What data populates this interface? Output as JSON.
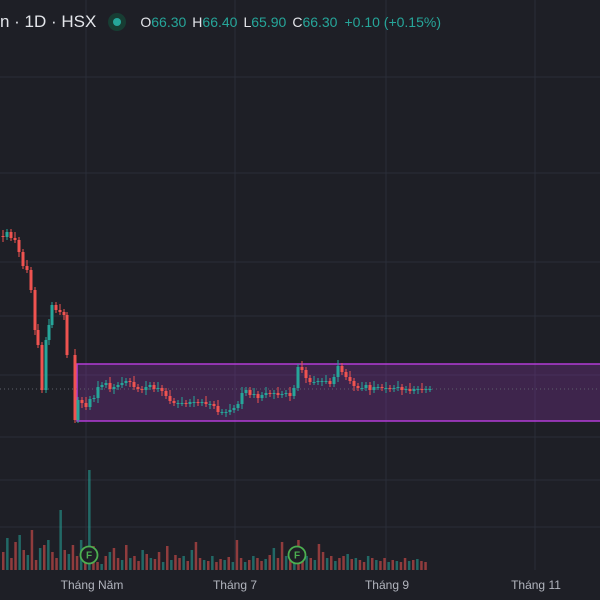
{
  "symbol_line": "n · 1D · HSX",
  "market_status_icon": "market-open-dot-icon",
  "ohlc": {
    "open_label": "O",
    "open": "66.30",
    "high_label": "H",
    "high": "66.40",
    "low_label": "L",
    "low": "65.90",
    "close_label": "C",
    "close": "66.30",
    "change": "+0.10 (+0.15%)"
  },
  "time_axis": [
    "Tháng Năm",
    "Tháng 7",
    "Tháng 9",
    "Tháng 11"
  ],
  "event_markers": [
    {
      "label": "F"
    },
    {
      "label": "F"
    }
  ],
  "colors": {
    "background": "#1e1f26",
    "up": "#26a69a",
    "down": "#ef5350",
    "range_box": "#b23cd6",
    "text": "#e3e5ea"
  },
  "chart_data": {
    "type": "candlestick",
    "x_axis_ticks": [
      "Tháng Năm",
      "Tháng 7",
      "Tháng 9",
      "Tháng 11"
    ],
    "latest_candle": {
      "open": 66.3,
      "high": 66.4,
      "low": 65.9,
      "close": 66.3,
      "change": 0.1,
      "change_pct": 0.15
    },
    "annotation": "rectangle range box drawn across the consolidation zone",
    "volume_histogram": true,
    "grid": true
  }
}
